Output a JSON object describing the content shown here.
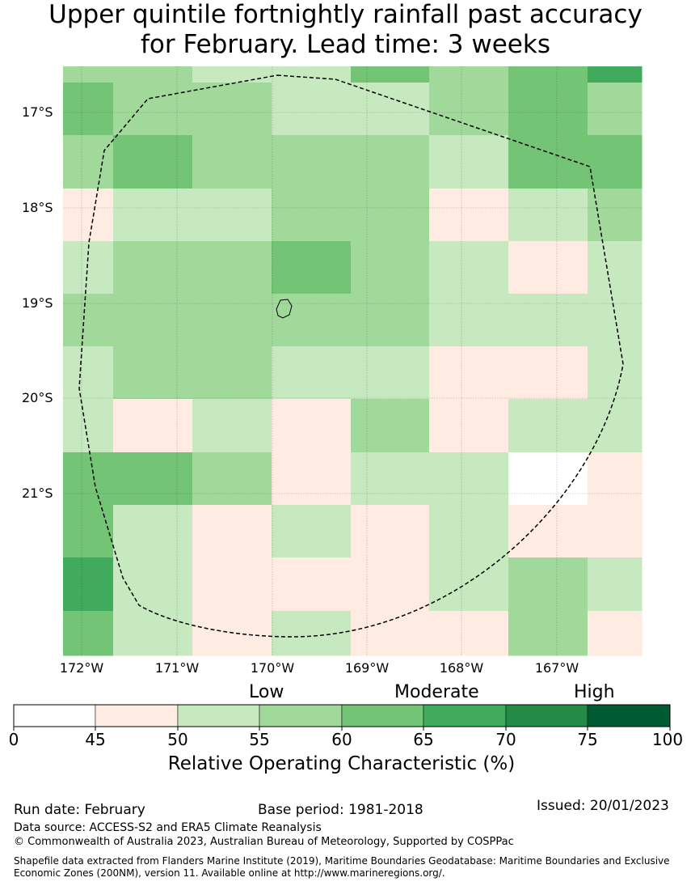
{
  "title_line1": "Upper quintile fortnightly rainfall past accuracy",
  "title_line2": "for February. Lead time: 3 weeks",
  "map": {
    "lat_labels": [
      "17°S",
      "18°S",
      "19°S",
      "20°S",
      "21°S"
    ],
    "lon_labels": [
      "172°W",
      "171°W",
      "170°W",
      "169°W",
      "168°W",
      "167°W"
    ],
    "grid_class": [
      [
        3,
        3,
        2,
        2,
        4,
        3,
        4,
        5
      ],
      [
        4,
        3,
        3,
        2,
        2,
        3,
        4,
        3
      ],
      [
        3,
        4,
        3,
        3,
        3,
        2,
        4,
        4
      ],
      [
        1,
        2,
        2,
        3,
        3,
        1,
        2,
        3
      ],
      [
        2,
        3,
        3,
        4,
        3,
        2,
        1,
        2
      ],
      [
        3,
        3,
        3,
        3,
        3,
        2,
        2,
        2
      ],
      [
        2,
        3,
        3,
        2,
        2,
        1,
        1,
        2
      ],
      [
        2,
        1,
        2,
        1,
        3,
        1,
        2,
        2
      ],
      [
        4,
        4,
        3,
        1,
        2,
        2,
        0,
        1
      ],
      [
        4,
        2,
        1,
        2,
        1,
        2,
        1,
        1
      ],
      [
        5,
        2,
        1,
        1,
        1,
        2,
        3,
        2
      ],
      [
        4,
        2,
        1,
        2,
        1,
        1,
        3,
        1
      ]
    ]
  },
  "colorbar": {
    "category_labels": [
      "Low",
      "Moderate",
      "High"
    ],
    "ticks": [
      "0",
      "45",
      "50",
      "55",
      "60",
      "65",
      "70",
      "75",
      "100"
    ],
    "colors": [
      "#ffffff",
      "#feebe2",
      "#c7e9c0",
      "#a1d99b",
      "#74c476",
      "#41ab5d",
      "#238b45",
      "#005a32"
    ],
    "title": "Relative Operating Characteristic (%)"
  },
  "footer": {
    "run_date": "Run date: February",
    "base_period": "Base period: 1981-2018",
    "issued": "Issued: 20/01/2023",
    "data_source": "Data source: ACCESS-S2 and ERA5 Climate Reanalysis",
    "copyright": "© Commonwealth of Australia 2023, Australian Bureau of Meteorology, Supported by COSPPac",
    "shapefile": "Shapefile data extracted from Flanders Marine Institute (2019), Maritime Boundaries Geodatabase: Maritime Boundaries and Exclusive Economic Zones (200NM), version 11. Available online at http://www.marineregions.org/."
  }
}
